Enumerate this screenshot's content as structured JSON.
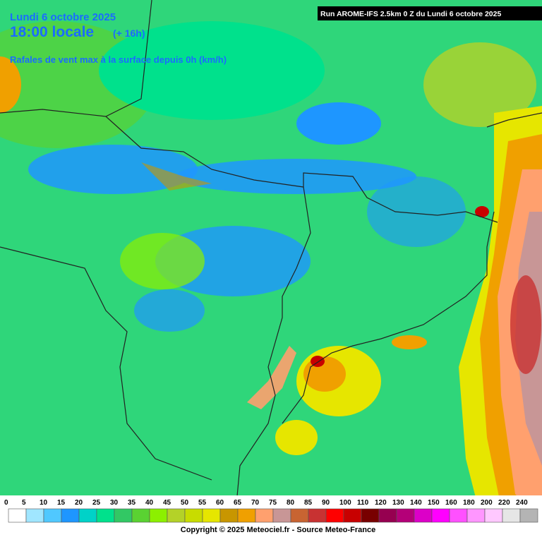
{
  "header": {
    "date": "Lundi 6 octobre 2025",
    "time": "18:00 locale",
    "lead": "(+ 16h)",
    "subtitle": "Rafales de vent max à la surface depuis 0h (km/h)",
    "run": "Run AROME-IFS 2.5km 0 Z du Lundi 6 octobre 2025"
  },
  "legend": {
    "entries": [
      {
        "value": 0,
        "color": "#ffffff"
      },
      {
        "value": 5,
        "color": "#a0e6ff"
      },
      {
        "value": 10,
        "color": "#50c8ff"
      },
      {
        "value": 15,
        "color": "#1e96ff"
      },
      {
        "value": 20,
        "color": "#00d2c8"
      },
      {
        "value": 25,
        "color": "#00e18c"
      },
      {
        "value": 30,
        "color": "#32c864"
      },
      {
        "value": 35,
        "color": "#5ad232"
      },
      {
        "value": 40,
        "color": "#8cf000"
      },
      {
        "value": 45,
        "color": "#b4d228"
      },
      {
        "value": 50,
        "color": "#c8dc00"
      },
      {
        "value": 55,
        "color": "#e6e600"
      },
      {
        "value": 60,
        "color": "#c89600"
      },
      {
        "value": 65,
        "color": "#f0a000"
      },
      {
        "value": 70,
        "color": "#ffa06e"
      },
      {
        "value": 75,
        "color": "#c89696"
      },
      {
        "value": 80,
        "color": "#c86432"
      },
      {
        "value": 85,
        "color": "#c83232"
      },
      {
        "value": 90,
        "color": "#ff0000"
      },
      {
        "value": 100,
        "color": "#c80000"
      },
      {
        "value": 110,
        "color": "#780000"
      },
      {
        "value": 120,
        "color": "#960050"
      },
      {
        "value": 130,
        "color": "#b40078"
      },
      {
        "value": 140,
        "color": "#dc00c8"
      },
      {
        "value": 150,
        "color": "#ff00ff"
      },
      {
        "value": 160,
        "color": "#ff50ff"
      },
      {
        "value": 180,
        "color": "#ff96ff"
      },
      {
        "value": 200,
        "color": "#ffc8ff"
      },
      {
        "value": 220,
        "color": "#e6e6e6"
      },
      {
        "value": 240,
        "color": "#b4b4b4"
      }
    ]
  },
  "footer": {
    "copyright": "Copyright © 2025 Meteociel.fr - Source Meteo-France"
  }
}
